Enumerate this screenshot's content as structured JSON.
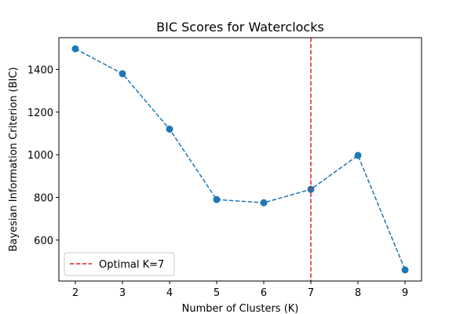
{
  "chart_data": {
    "type": "line",
    "title": "BIC Scores for Waterclocks",
    "xlabel": "Number of Clusters (K)",
    "ylabel": "Bayesian Information Criterion (BIC)",
    "x": [
      2,
      3,
      4,
      5,
      6,
      7,
      8,
      9
    ],
    "series": [
      {
        "values": [
          1497,
          1380,
          1120,
          790,
          775,
          838,
          997,
          460
        ],
        "color": "#1f77b4",
        "line_style": "dashed",
        "marker": "circle"
      }
    ],
    "xlim": [
      1.65,
      9.35
    ],
    "ylim": [
      408,
      1549
    ],
    "xticks": [
      2,
      3,
      4,
      5,
      6,
      7,
      8,
      9
    ],
    "yticks": [
      600,
      800,
      1000,
      1200,
      1400
    ],
    "vline": {
      "x": 7,
      "color": "#d62728",
      "line_style": "dashed",
      "label": "Optimal K=7"
    },
    "legend": {
      "placement": "lower-left",
      "entries": [
        "Optimal K=7"
      ]
    },
    "grid": false
  }
}
